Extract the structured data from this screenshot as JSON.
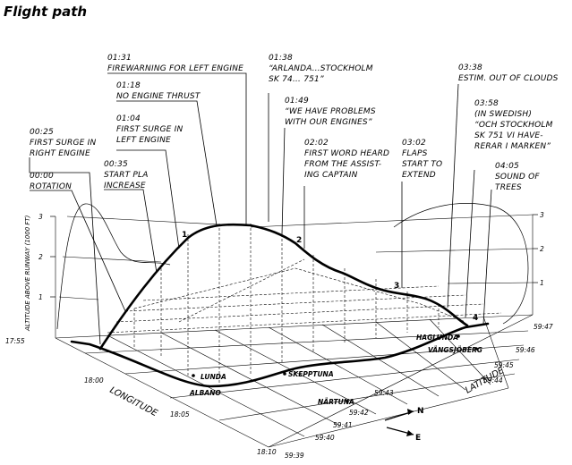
{
  "figure": {
    "title": "Flight path",
    "y_axis_label": "ALTITUDE ABOVE RUNWAY (1000 FT)",
    "longitude_label": "LONGITUDE",
    "latitude_label": "LATITUDE",
    "left_altitude_ticks": [
      "1",
      "2",
      "3"
    ],
    "right_altitude_ticks": [
      "1",
      "2",
      "3"
    ],
    "longitude_ticks": [
      "17:55",
      "18:00",
      "18:05",
      "18:10"
    ],
    "latitude_ticks": [
      "59:39",
      "59:40",
      "59:41",
      "59:42",
      "59:43",
      "59:44",
      "59:45",
      "59:46",
      "59:47"
    ],
    "path_markers": [
      "1",
      "2",
      "3",
      "4"
    ],
    "places": [
      "LUNDA",
      "ALBANO",
      "SKEPPTUNA",
      "NÄRTUNA",
      "HAGLUNDA",
      "VÄNGSJÖBERG"
    ],
    "compass": {
      "north": "N",
      "east": "E"
    },
    "annotations": [
      {
        "time": "00:25",
        "text": [
          "FIRST SURGE IN",
          "RIGHT ENGINE"
        ]
      },
      {
        "time": "00:00",
        "text": [
          "ROTATION"
        ]
      },
      {
        "time": "00:35",
        "text": [
          "START PLA",
          "INCREASE"
        ]
      },
      {
        "time": "01:04",
        "text": [
          "FIRST SURGE IN",
          "LEFT ENGINE"
        ]
      },
      {
        "time": "01:18",
        "text": [
          "NO ENGINE THRUST"
        ]
      },
      {
        "time": "01:31",
        "text": [
          "FIREWARNING FOR LEFT ENGINE"
        ]
      },
      {
        "time": "01:38",
        "text": [
          "“ARLANDA…STOCKHOLM",
          "SK 74… 751”"
        ]
      },
      {
        "time": "01:49",
        "text": [
          "“WE HAVE PROBLEMS",
          "WITH OUR ENGINES”"
        ]
      },
      {
        "time": "02:02",
        "text": [
          "FIRST WORD HEARD",
          "FROM THE ASSIST-",
          "ING CAPTAIN"
        ]
      },
      {
        "time": "03:02",
        "text": [
          "FLAPS",
          "START TO",
          "EXTEND"
        ]
      },
      {
        "time": "03:38",
        "text": [
          "ESTIM. OUT OF CLOUDS"
        ]
      },
      {
        "time": "03:58",
        "text": [
          "(IN SWEDISH)",
          "“OCH STOCKHOLM",
          "SK 751 VI HAVE-",
          "RERAR I MARKEN”"
        ]
      },
      {
        "time": "04:05",
        "text": [
          "SOUND OF",
          "TREES"
        ]
      }
    ]
  }
}
